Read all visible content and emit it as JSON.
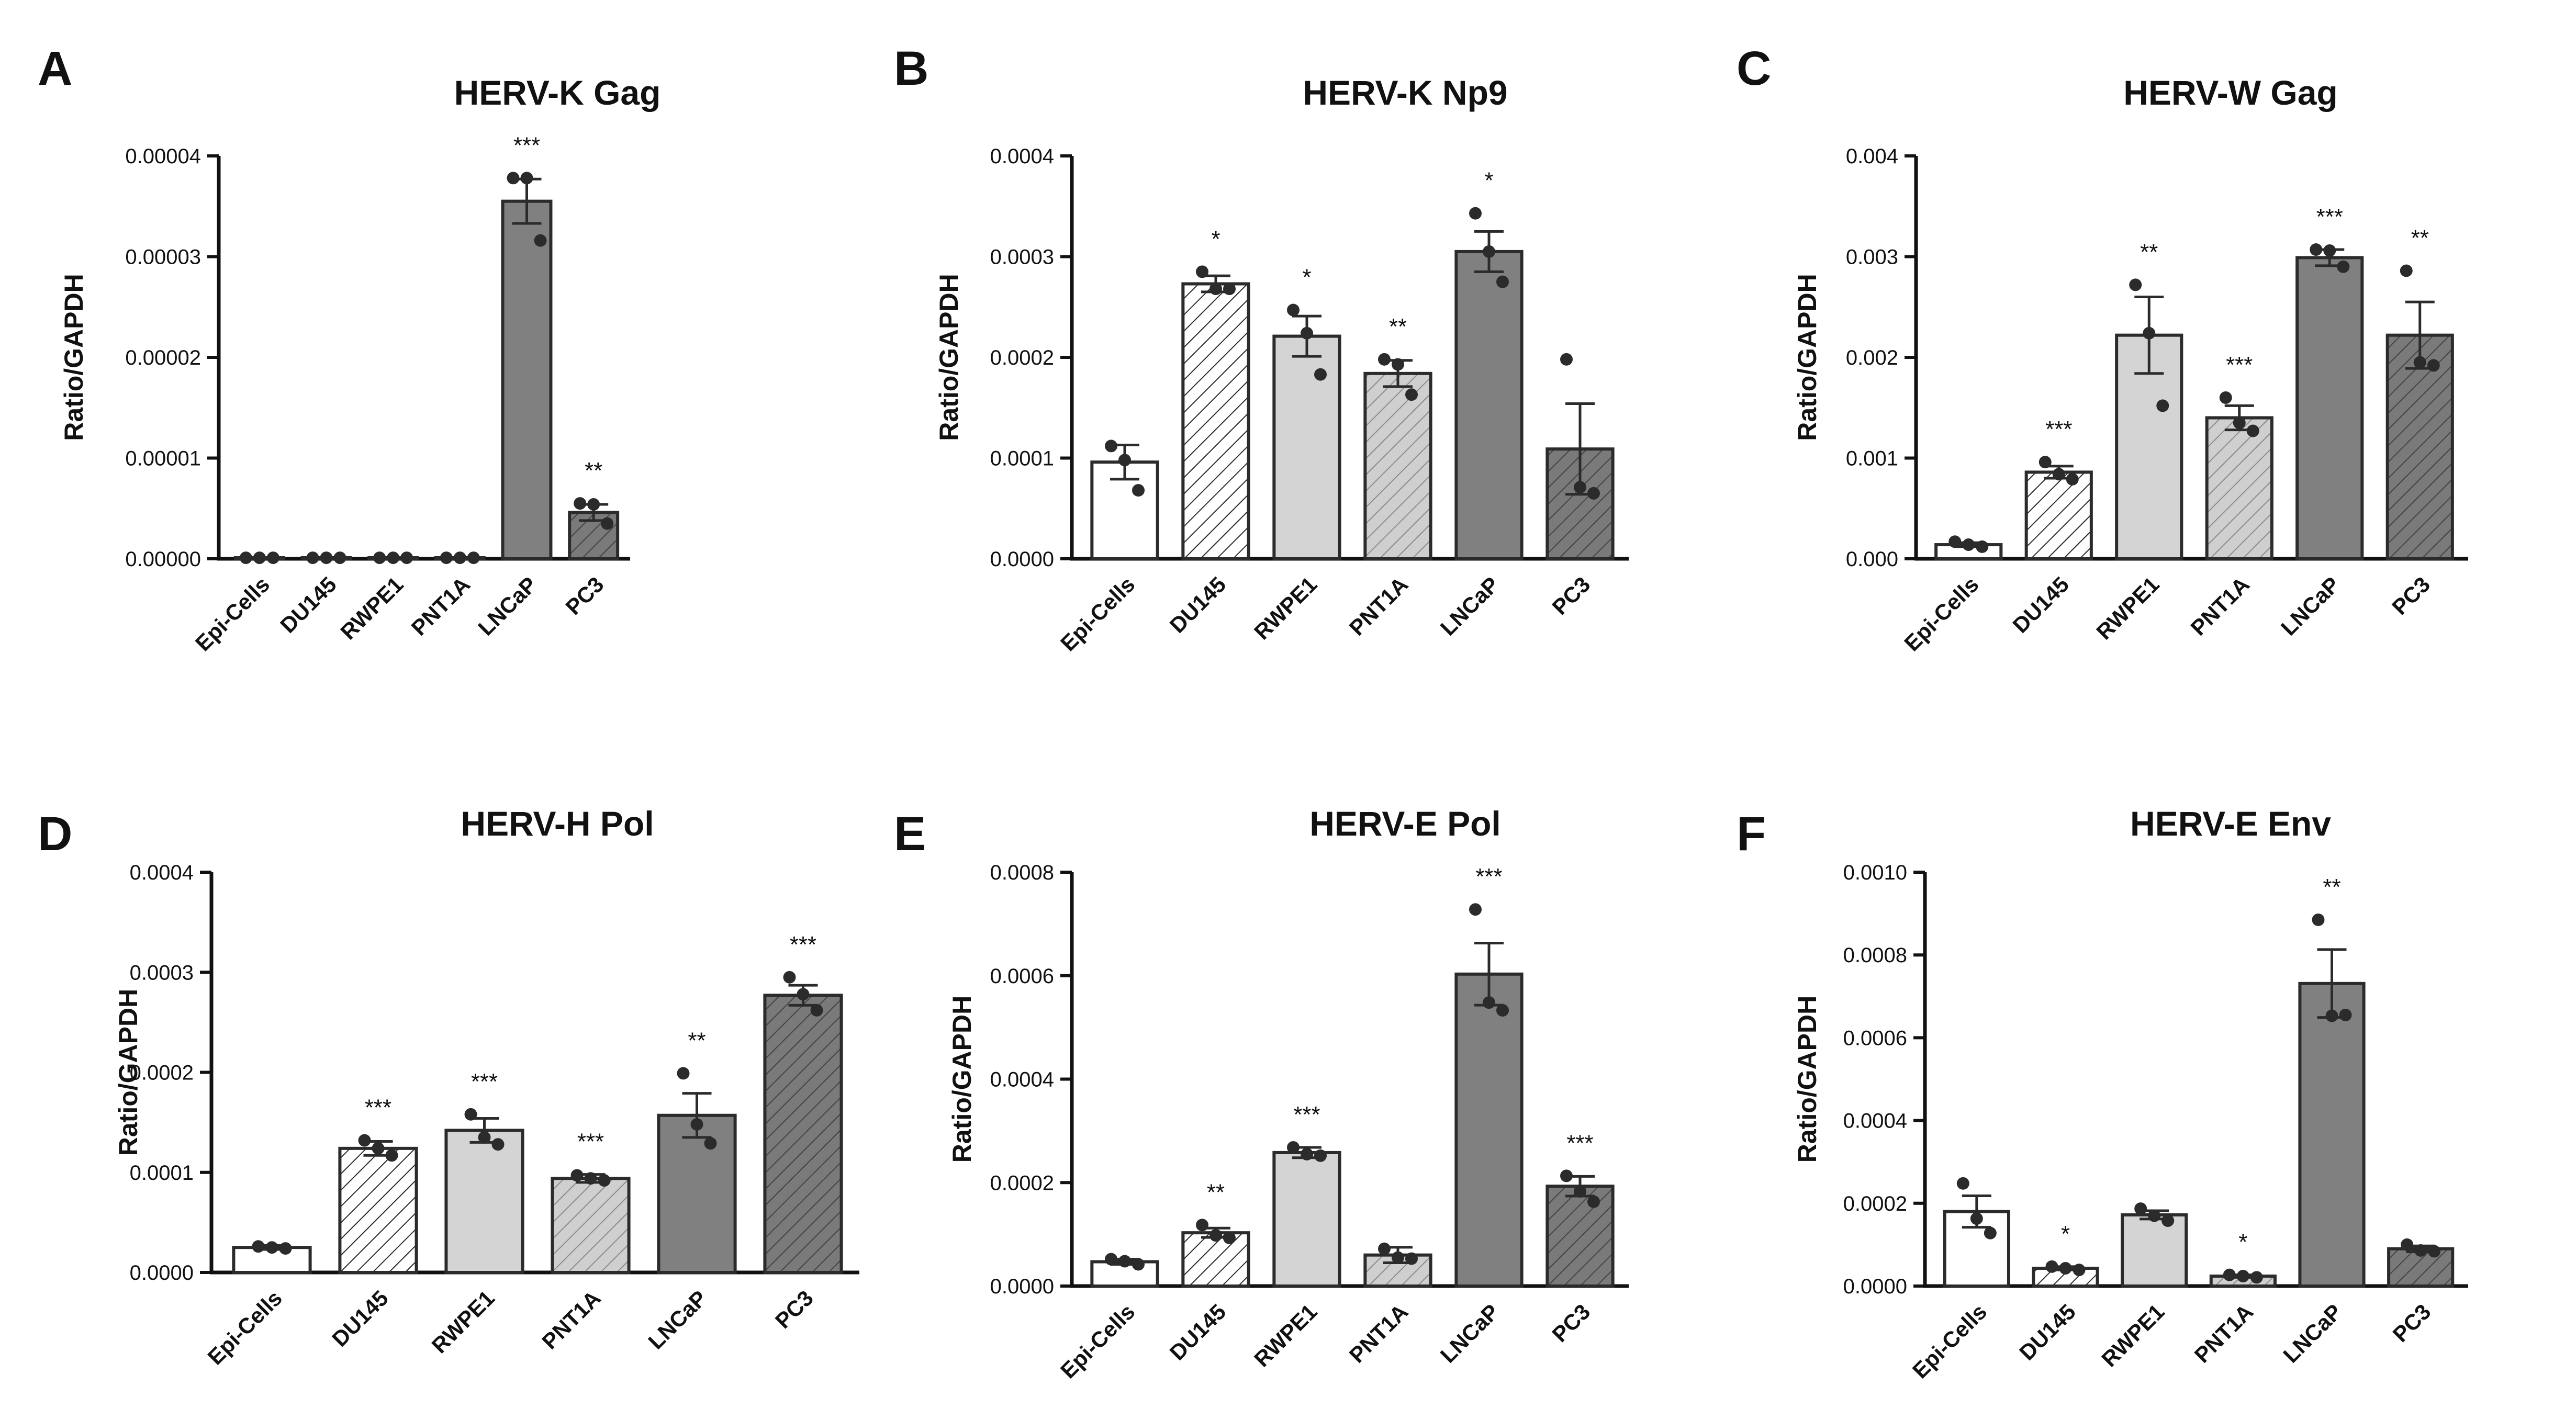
{
  "chart_data": [
    {
      "type": "bar",
      "panel": "A",
      "title": "HERV-K Gag",
      "ylabel": "Ratio/GAPDH",
      "xlabel": "",
      "ylim": [
        0,
        4e-05
      ],
      "yticks": [
        "0.00000",
        "0.00001",
        "0.00002",
        "0.00003",
        "0.00004"
      ],
      "categories": [
        "Epi-Cells",
        "DU145",
        "RWPE1",
        "PNT1A",
        "LNCaP",
        "PC3"
      ],
      "values": [
        1e-07,
        1e-07,
        1e-07,
        1e-07,
        3.55e-05,
        4.6e-06
      ],
      "sem": [
        0,
        0,
        0,
        0,
        2.2e-06,
        8e-07
      ],
      "points": [
        [
          1e-07,
          1e-07,
          1e-07
        ],
        [
          1e-07,
          1e-07,
          1e-07
        ],
        [
          1e-07,
          1e-07,
          1e-07
        ],
        [
          1e-07,
          1e-07,
          1e-07
        ],
        [
          3.78e-05,
          3.78e-05,
          3.16e-05
        ],
        [
          5.5e-06,
          5.4e-06,
          3.5e-06
        ]
      ],
      "significance": [
        "",
        "",
        "",
        "",
        "***",
        "**"
      ]
    },
    {
      "type": "bar",
      "panel": "B",
      "title": "HERV-K Np9",
      "ylabel": "Ratio/GAPDH",
      "xlabel": "",
      "ylim": [
        0,
        0.0004
      ],
      "yticks": [
        "0.0000",
        "0.0001",
        "0.0002",
        "0.0003",
        "0.0004"
      ],
      "categories": [
        "Epi-Cells",
        "DU145",
        "RWPE1",
        "PNT1A",
        "LNCaP",
        "PC3"
      ],
      "values": [
        9.6e-05,
        0.000273,
        0.000221,
        0.000184,
        0.000305,
        0.000109
      ],
      "sem": [
        1.7e-05,
        8e-06,
        2e-05,
        1.3e-05,
        2e-05,
        4.5e-05
      ],
      "points": [
        [
          0.000112,
          9.8e-05,
          6.8e-05
        ],
        [
          0.000285,
          0.000268,
          0.000268
        ],
        [
          0.000247,
          0.000224,
          0.000183
        ],
        [
          0.000198,
          0.000193,
          0.000163
        ],
        [
          0.000343,
          0.000305,
          0.000275
        ],
        [
          0.000198,
          7.1e-05,
          6.5e-05
        ]
      ],
      "significance": [
        "",
        "*",
        "*",
        "**",
        "*",
        ""
      ]
    },
    {
      "type": "bar",
      "panel": "C",
      "title": "HERV-W Gag",
      "ylabel": "Ratio/GAPDH",
      "xlabel": "",
      "ylim": [
        0,
        0.004
      ],
      "yticks": [
        "0.000",
        "0.001",
        "0.002",
        "0.003",
        "0.004"
      ],
      "categories": [
        "Epi-Cells",
        "DU145",
        "RWPE1",
        "PNT1A",
        "LNCaP",
        "PC3"
      ],
      "values": [
        0.00014,
        0.00086,
        0.00222,
        0.0014,
        0.00299,
        0.00222
      ],
      "sem": [
        2e-05,
        6e-05,
        0.00038,
        0.00012,
        8e-05,
        0.00033
      ],
      "points": [
        [
          0.00017,
          0.00014,
          0.00012
        ],
        [
          0.00096,
          0.00084,
          0.00079
        ],
        [
          0.00272,
          0.00224,
          0.00152
        ],
        [
          0.0016,
          0.00135,
          0.00127
        ],
        [
          0.00307,
          0.00306,
          0.0029
        ],
        [
          0.00286,
          0.00195,
          0.00192
        ]
      ],
      "significance": [
        "",
        "***",
        "**",
        "***",
        "***",
        "**"
      ]
    },
    {
      "type": "bar",
      "panel": "D",
      "title": "HERV-H Pol",
      "ylabel": "Ratio/GAPDH",
      "xlabel": "",
      "ylim": [
        0,
        0.0004
      ],
      "yticks": [
        "0.0000",
        "0.0001",
        "0.0002",
        "0.0003",
        "0.0004"
      ],
      "categories": [
        "Epi-Cells",
        "DU145",
        "RWPE1",
        "PNT1A",
        "LNCaP",
        "PC3"
      ],
      "values": [
        2.5e-05,
        0.000124,
        0.000142,
        9.4e-05,
        0.000157,
        0.000277
      ],
      "sem": [
        2e-06,
        7e-06,
        1.2e-05,
        4e-06,
        2.2e-05,
        1e-05
      ],
      "points": [
        [
          2.6e-05,
          2.5e-05,
          2.4e-05
        ],
        [
          0.000132,
          0.000124,
          0.000117
        ],
        [
          0.000158,
          0.000135,
          0.000128
        ],
        [
          9.7e-05,
          9.4e-05,
          9.2e-05
        ],
        [
          0.000199,
          0.000148,
          0.000129
        ],
        [
          0.000295,
          0.000278,
          0.000262
        ]
      ],
      "significance": [
        "",
        "***",
        "***",
        "***",
        "**",
        "***"
      ]
    },
    {
      "type": "bar",
      "panel": "E",
      "title": "HERV-E Pol",
      "ylabel": "Ratio/GAPDH",
      "xlabel": "",
      "ylim": [
        0,
        0.0008
      ],
      "yticks": [
        "0.0000",
        "0.0002",
        "0.0004",
        "0.0006",
        "0.0008"
      ],
      "categories": [
        "Epi-Cells",
        "DU145",
        "RWPE1",
        "PNT1A",
        "LNCaP",
        "PC3"
      ],
      "values": [
        4.7e-05,
        0.000103,
        0.000258,
        6e-05,
        0.000603,
        0.000193
      ],
      "sem": [
        5e-06,
        9e-06,
        1e-05,
        1.5e-05,
        6e-05,
        1.9e-05
      ],
      "points": [
        [
          5.2e-05,
          4.8e-05,
          4.2e-05
        ],
        [
          0.000118,
          9.8e-05,
          9.3e-05
        ],
        [
          0.000268,
          0.000255,
          0.000252
        ],
        [
          7.2e-05,
          5.5e-05,
          5.3e-05
        ],
        [
          0.000728,
          0.000548,
          0.000533
        ],
        [
          0.000213,
          0.000183,
          0.000163
        ]
      ],
      "significance": [
        "",
        "**",
        "***",
        "",
        "***",
        "***"
      ]
    },
    {
      "type": "bar",
      "panel": "F",
      "title": "HERV-E Env",
      "ylabel": "Ratio/GAPDH",
      "xlabel": "",
      "ylim": [
        0,
        0.001
      ],
      "yticks": [
        "0.0000",
        "0.0002",
        "0.0004",
        "0.0006",
        "0.0008",
        "0.0010"
      ],
      "categories": [
        "Epi-Cells",
        "DU145",
        "RWPE1",
        "PNT1A",
        "LNCaP",
        "PC3"
      ],
      "values": [
        0.00018,
        4.3e-05,
        0.000172,
        2.4e-05,
        0.000731,
        9e-05
      ],
      "sem": [
        3.8e-05,
        4e-06,
        1e-05,
        3e-06,
        8.2e-05,
        7e-06
      ],
      "points": [
        [
          0.000248,
          0.000163,
          0.000128
        ],
        [
          4.7e-05,
          4.3e-05,
          3.9e-05
        ],
        [
          0.000187,
          0.00017,
          0.000158
        ],
        [
          2.7e-05,
          2.4e-05,
          2.1e-05
        ],
        [
          0.000885,
          0.000653,
          0.000655
        ],
        [
          0.0001,
          8.6e-05,
          8.4e-05
        ]
      ],
      "significance": [
        "",
        "*",
        "",
        "*",
        "**",
        ""
      ]
    }
  ],
  "styles": {
    "bar_stroke": "#2b2b2b",
    "axis_color": "#111111",
    "dot_color": "#2b2b2b",
    "fills": [
      "#ffffff",
      "hatch-white",
      "#d4d4d4",
      "hatch-light",
      "#808080",
      "hatch-dark"
    ]
  }
}
